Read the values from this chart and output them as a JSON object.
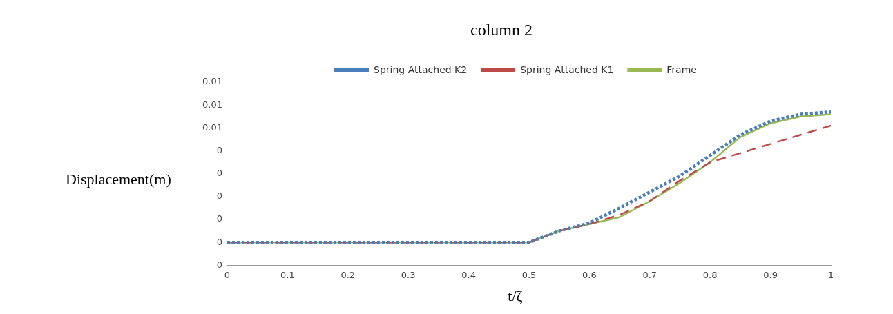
{
  "chart_data": {
    "type": "line",
    "title": "column 2",
    "xlabel": "t/ζ",
    "ylabel": "Displacement(m)",
    "x": [
      0,
      0.5,
      0.55,
      0.6,
      0.65,
      0.7,
      0.75,
      0.8,
      0.85,
      0.9,
      0.95,
      1
    ],
    "series": [
      {
        "name": "Spring Attached K2",
        "color": "#4a7ebb",
        "line_style": "dotted",
        "values": [
          0,
          0,
          0.0005,
          0.00085,
          0.0015,
          0.0022,
          0.0029,
          0.0038,
          0.0047,
          0.0053,
          0.0056,
          0.0057
        ]
      },
      {
        "name": "Spring Attached K1",
        "color": "#be4b48",
        "line_style": "dashed",
        "values": [
          0,
          0,
          0.0005,
          0.0008,
          0.0012,
          0.0018,
          0.0027,
          0.0035,
          0.0039,
          0.0043,
          0.0047,
          0.0051
        ]
      },
      {
        "name": "Frame",
        "color": "#98b954",
        "line_style": "solid",
        "values": [
          0,
          0,
          0.0005,
          0.0008,
          0.0011,
          0.0018,
          0.0026,
          0.0035,
          0.0046,
          0.0052,
          0.0055,
          0.0056
        ]
      }
    ],
    "xlim": [
      0,
      1
    ],
    "xticks": [
      0,
      0.1,
      0.2,
      0.3,
      0.4,
      0.5,
      0.6,
      0.7,
      0.8,
      0.9,
      1
    ],
    "ylim": [
      -0.001,
      0.007
    ],
    "yticks": [
      {
        "value": -0.001,
        "label": "0"
      },
      {
        "value": 0,
        "label": "0"
      },
      {
        "value": 0.001,
        "label": "0"
      },
      {
        "value": 0.002,
        "label": "0"
      },
      {
        "value": 0.003,
        "label": "0"
      },
      {
        "value": 0.004,
        "label": "0"
      },
      {
        "value": 0.005,
        "label": "0.01"
      },
      {
        "value": 0.006,
        "label": "0.01"
      },
      {
        "value": 0.007,
        "label": "0.01"
      }
    ],
    "grid": false,
    "legend": "top",
    "marker": "none"
  }
}
